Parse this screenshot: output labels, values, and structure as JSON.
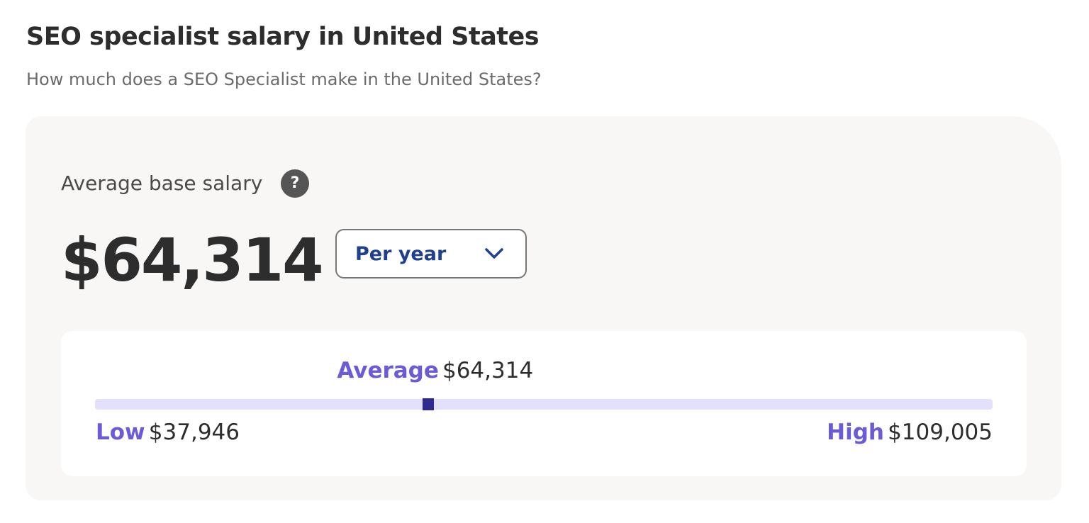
{
  "header": {
    "title": "SEO specialist salary in United States",
    "subtitle": "How much does a SEO Specialist make in the United States?"
  },
  "salary": {
    "label": "Average base salary",
    "help": "?",
    "period": "Per year"
  },
  "range": {
    "low": {
      "label": "Low",
      "value": 37946,
      "value_label": "$37,946"
    },
    "average": {
      "label": "Average",
      "value": 64314,
      "value_label": "$64,314"
    },
    "high": {
      "label": "High",
      "value": 109005,
      "value_label": "$109,005"
    }
  }
}
